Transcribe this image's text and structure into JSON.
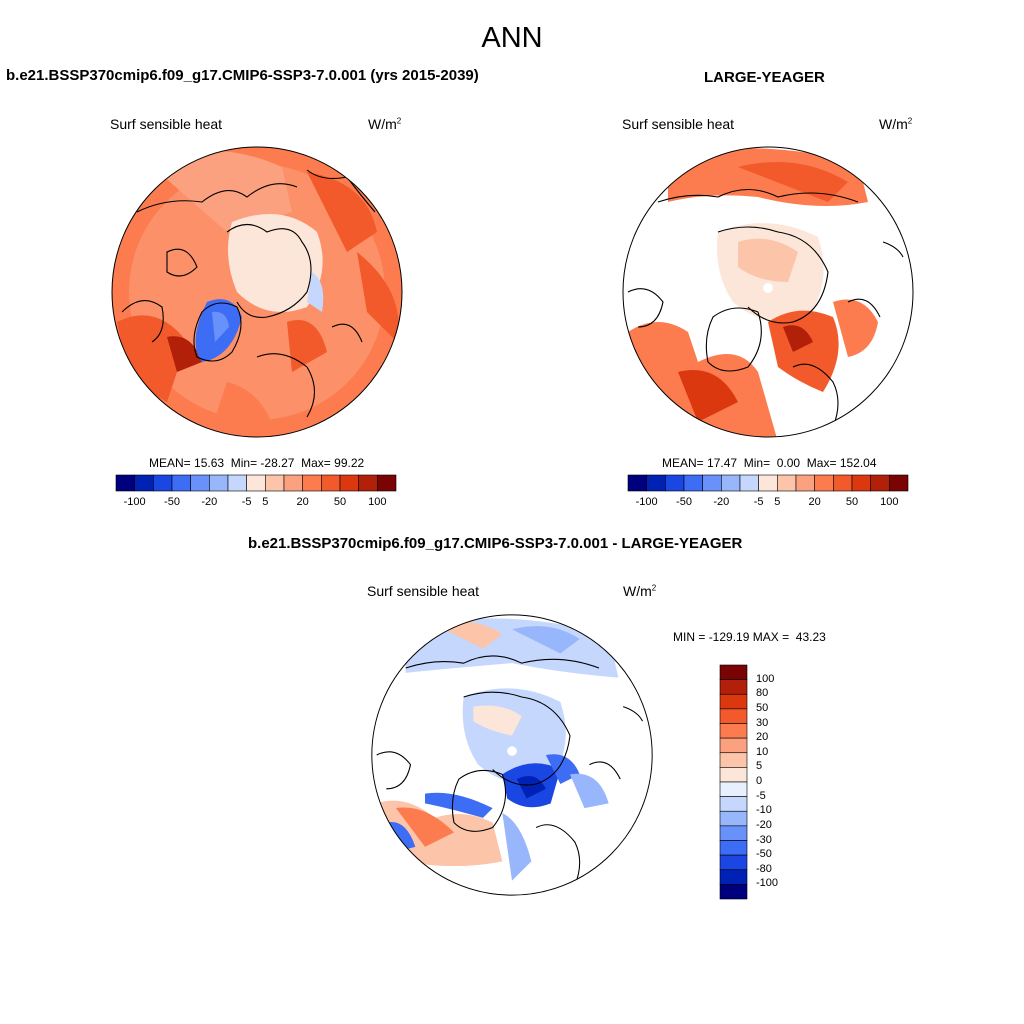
{
  "figure": {
    "season": "ANN"
  },
  "palette": [
    "#00007f",
    "#0022b4",
    "#1a46e3",
    "#3d6cf5",
    "#6892fa",
    "#98b6fc",
    "#c5d7fd",
    "#fbe6d9",
    "#fcc4a8",
    "#fca17f",
    "#fc7c4f",
    "#f25a2b",
    "#dc3810",
    "#b2200a",
    "#7a0403"
  ],
  "panel_left": {
    "title": "b.e21.BSSP370cmip6.f09_g17.CMIP6-SSP3-7.0.001 (yrs 2015-2039)",
    "variable": "Surf sensible heat",
    "units_base": "W/m",
    "units_exp": "2",
    "mean_label": "MEAN=",
    "mean": "15.63",
    "min_label": "Min=",
    "min": "-28.27",
    "max_label": "Max=",
    "max": "99.22"
  },
  "panel_right": {
    "title": "LARGE-YEAGER",
    "variable": "Surf sensible heat",
    "units_base": "W/m",
    "units_exp": "2",
    "mean_label": "MEAN=",
    "mean": "17.47",
    "min_label": "Min=",
    "min": "0.00",
    "max_label": "Max=",
    "max": "152.04"
  },
  "panel_diff": {
    "title": "b.e21.BSSP370cmip6.f09_g17.CMIP6-SSP3-7.0.001 - LARGE-YEAGER",
    "variable": "Surf sensible heat",
    "units_base": "W/m",
    "units_exp": "2",
    "min_label": "MIN =",
    "min": "-129.19",
    "max_label": "MAX =",
    "max": "43.23"
  },
  "colorbar_top": {
    "tick_labels": [
      "-100",
      "-50",
      "-20",
      "-5",
      "5",
      "20",
      "50",
      "100"
    ]
  },
  "colorbar_diff": {
    "tick_labels": [
      "100",
      "80",
      "50",
      "30",
      "20",
      "10",
      "5",
      "0",
      "-5",
      "-10",
      "-20",
      "-30",
      "-50",
      "-80",
      "-100"
    ]
  }
}
